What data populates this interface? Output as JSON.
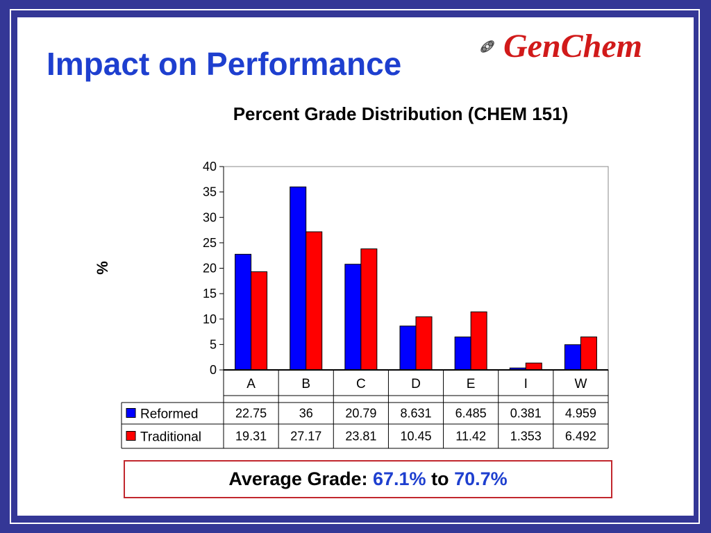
{
  "slide": {
    "title": "Impact on Performance",
    "logo_text": "GenChem",
    "logo_icon": "molecule-icon"
  },
  "chart_data": {
    "type": "bar",
    "title": "Percent Grade Distribution (CHEM 151)",
    "xlabel": "",
    "ylabel": "%",
    "ylim": [
      0,
      40
    ],
    "yticks": [
      0,
      5,
      10,
      15,
      20,
      25,
      30,
      35,
      40
    ],
    "categories": [
      "A",
      "B",
      "C",
      "D",
      "E",
      "I",
      "W"
    ],
    "series": [
      {
        "name": "Reformed",
        "color": "#0000ff",
        "values": [
          22.75,
          36,
          20.79,
          8.631,
          6.485,
          0.381,
          4.959
        ],
        "labels": [
          "22.75",
          "36",
          "20.79",
          "8.631",
          "6.485",
          "0.381",
          "4.959"
        ]
      },
      {
        "name": "Traditional",
        "color": "#ff0000",
        "values": [
          19.31,
          27.17,
          23.81,
          10.45,
          11.42,
          1.353,
          6.492
        ],
        "labels": [
          "19.31",
          "27.17",
          "23.81",
          "10.45",
          "11.42",
          "1.353",
          "6.492"
        ]
      }
    ],
    "grid": false,
    "legend": "data-table"
  },
  "summary": {
    "label": "Average Grade:",
    "from": "67.1%",
    "connector": "to",
    "to": "70.7%"
  },
  "colors": {
    "background": "#343796",
    "title": "#1e3fcf",
    "logo": "#d11a1a",
    "box_border": "#c1272d"
  }
}
